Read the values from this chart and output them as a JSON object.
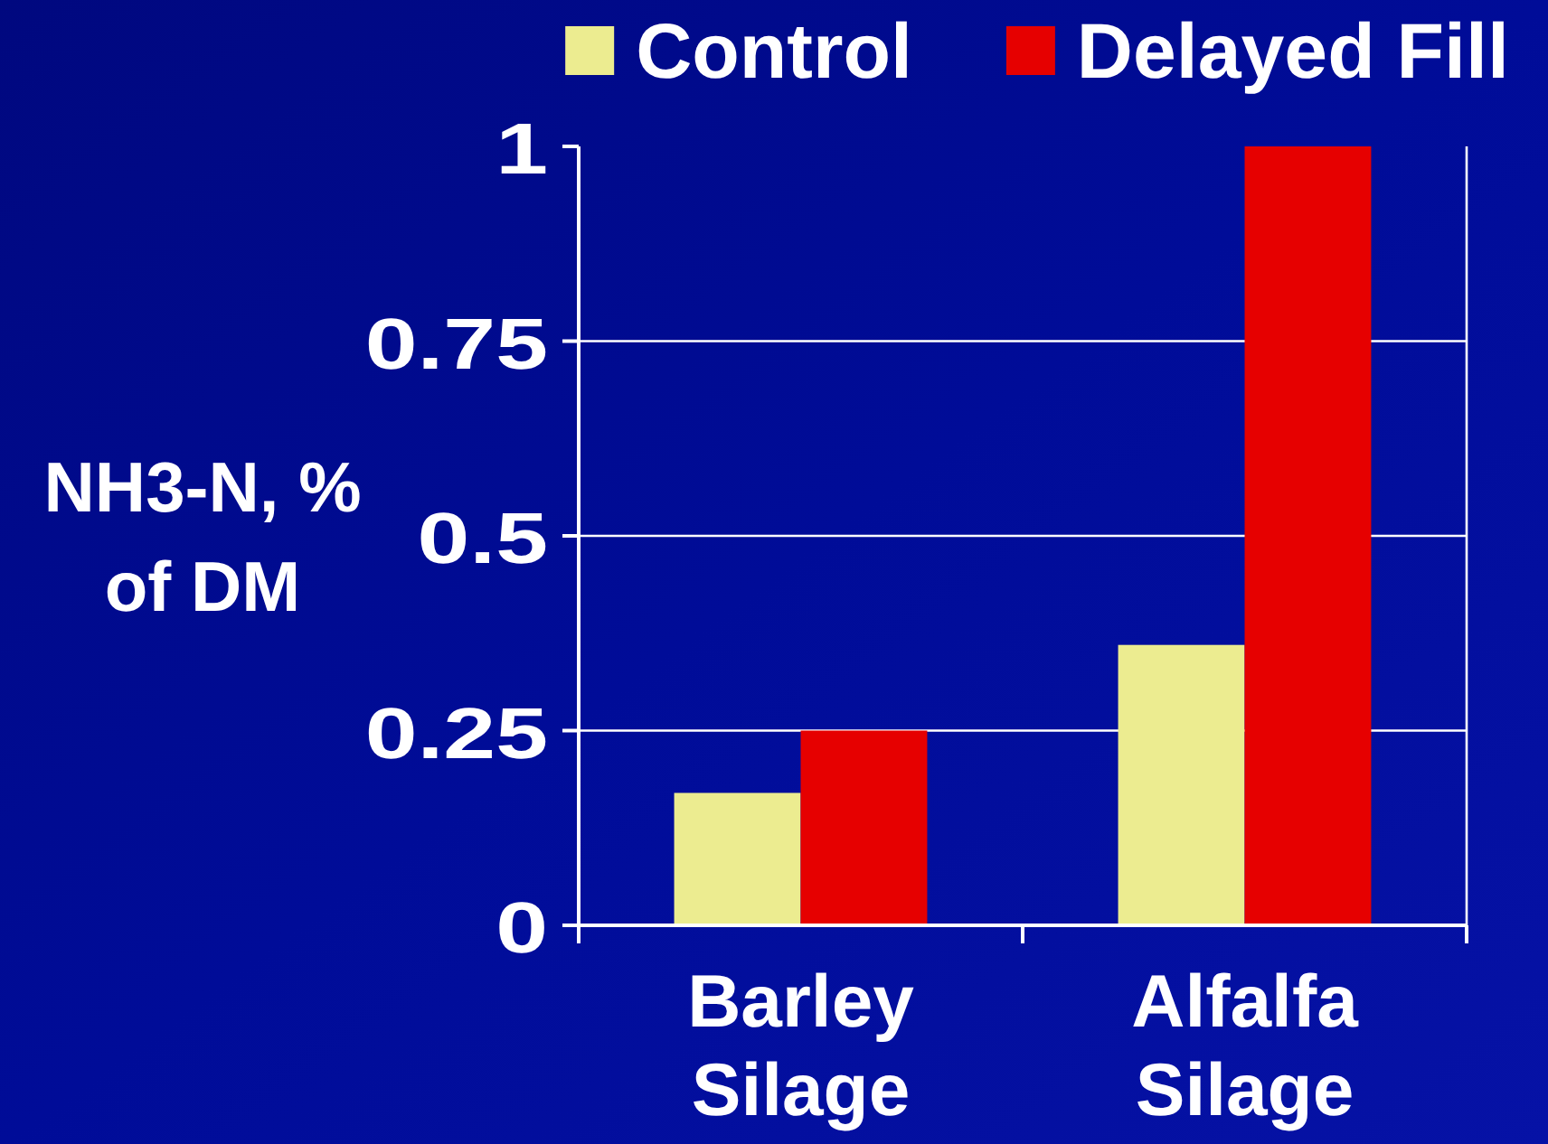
{
  "chart_data": {
    "type": "bar",
    "categories": [
      "Barley Silage",
      "Alfalfa Silage"
    ],
    "series": [
      {
        "name": "Control",
        "color": "#ecec90",
        "values": [
          0.17,
          0.36
        ]
      },
      {
        "name": "Delayed Fill",
        "color": "#e60000",
        "values": [
          0.25,
          1.0
        ]
      }
    ],
    "ylabel": "NH3-N, % of DM",
    "ylim": [
      0,
      1
    ],
    "yticks": [
      0,
      0.25,
      0.5,
      0.75,
      1
    ],
    "grid": true,
    "legend": "top"
  }
}
